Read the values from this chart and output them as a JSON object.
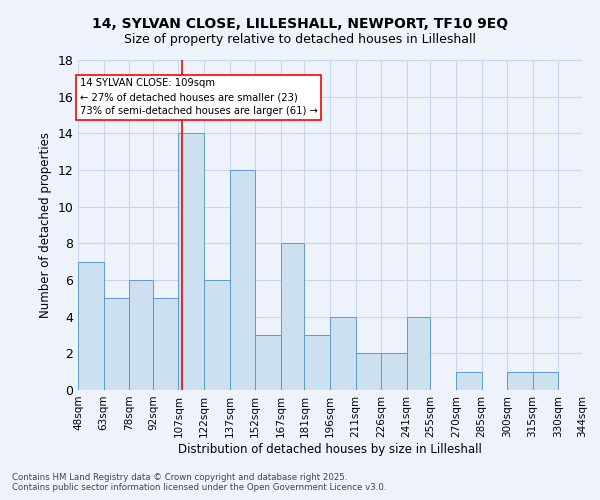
{
  "title1": "14, SYLVAN CLOSE, LILLESHALL, NEWPORT, TF10 9EQ",
  "title2": "Size of property relative to detached houses in Lilleshall",
  "xlabel": "Distribution of detached houses by size in Lilleshall",
  "ylabel": "Number of detached properties",
  "bin_labels": [
    "48sqm",
    "63sqm",
    "78sqm",
    "92sqm",
    "107sqm",
    "122sqm",
    "137sqm",
    "152sqm",
    "167sqm",
    "181sqm",
    "196sqm",
    "211sqm",
    "226sqm",
    "241sqm",
    "255sqm",
    "270sqm",
    "285sqm",
    "300sqm",
    "315sqm",
    "330sqm",
    "344sqm"
  ],
  "bin_edges": [
    48,
    63,
    78,
    92,
    107,
    122,
    137,
    152,
    167,
    181,
    196,
    211,
    226,
    241,
    255,
    270,
    285,
    300,
    315,
    330,
    344
  ],
  "bar_values": [
    7,
    5,
    6,
    5,
    14,
    6,
    12,
    3,
    8,
    3,
    4,
    2,
    2,
    4,
    0,
    1,
    0,
    1,
    1,
    0
  ],
  "bar_color": "#cce0f0",
  "bar_edge_color": "#5b9bd5",
  "grid_color": "#c8d8ea",
  "ref_line_x": 109,
  "ref_line_color": "red",
  "annotation_text": "14 SYLVAN CLOSE: 109sqm\n← 27% of detached houses are smaller (23)\n73% of semi-detached houses are larger (61) →",
  "annotation_box_color": "white",
  "annotation_box_edge": "red",
  "ylim": [
    0,
    18
  ],
  "yticks": [
    0,
    2,
    4,
    6,
    8,
    10,
    12,
    14,
    16,
    18
  ],
  "footer_text": "Contains HM Land Registry data © Crown copyright and database right 2025.\nContains public sector information licensed under the Open Government Licence v3.0.",
  "bg_color": "#eef2fb"
}
